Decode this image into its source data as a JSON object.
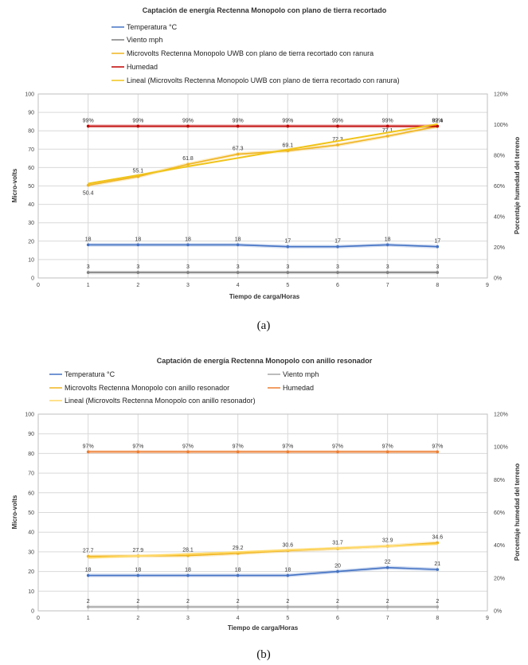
{
  "chart_data": [
    {
      "type": "line",
      "title": "Captación de energía Rectenna Monopolo  con plano de tierra recortado",
      "caption": "(a)",
      "xlabel": "Tiempo de carga/Horas",
      "ylabel": "Micro-volts",
      "y2label": "Porcentaje  humedad del terreno",
      "xlim": [
        0,
        9
      ],
      "ylim": [
        0,
        100
      ],
      "y2lim": [
        0,
        1.2
      ],
      "xticks": [
        "0",
        "1",
        "2",
        "3",
        "4",
        "5",
        "6",
        "7",
        "8",
        "9"
      ],
      "yticks": [
        "0",
        "10",
        "20",
        "30",
        "40",
        "50",
        "60",
        "70",
        "80",
        "90",
        "100"
      ],
      "y2ticks": [
        "0%",
        "20%",
        "40%",
        "60%",
        "80%",
        "100%",
        "120%"
      ],
      "x": [
        1,
        2,
        3,
        4,
        5,
        6,
        7,
        8
      ],
      "grid": true,
      "legend_position": "top-left",
      "series": [
        {
          "name": "Temperatura °C",
          "color": "#4472c4",
          "axis": "left",
          "values": [
            18,
            18,
            18,
            18,
            17,
            17,
            18,
            17
          ],
          "labels": [
            "18",
            "18",
            "18",
            "18",
            "17",
            "17",
            "18",
            "17"
          ]
        },
        {
          "name": "Viento mph",
          "color": "#7f7f7f",
          "axis": "left",
          "values": [
            3,
            3,
            3,
            3,
            3,
            3,
            3,
            3
          ],
          "labels": [
            "3",
            "3",
            "3",
            "3",
            "3",
            "3",
            "3",
            "3"
          ]
        },
        {
          "name": "Microvolts Rectenna Monopolo UWB con plano de tierra recortado con ranura",
          "color": "#f0b41e",
          "axis": "left",
          "values": [
            50.4,
            55.1,
            61.8,
            67.3,
            69.1,
            72.3,
            77.1,
            82.4
          ],
          "labels": [
            "50.4",
            "55.1",
            "61.8",
            "67.3",
            "69.1",
            "72.3",
            "77.1",
            "82.4"
          ]
        },
        {
          "name": "Humedad",
          "color": "#c00000",
          "axis": "right",
          "values": [
            0.99,
            0.99,
            0.99,
            0.99,
            0.99,
            0.99,
            0.99,
            0.99
          ],
          "labels": [
            "99%",
            "99%",
            "99%",
            "99%",
            "99%",
            "99%",
            "99%",
            "99%"
          ]
        },
        {
          "name": "Lineal (Microvolts Rectenna Monopolo UWB con plano de tierra recortado con ranura)",
          "color": "#f0c419",
          "axis": "left",
          "trendline": true,
          "values": [
            51.3,
            55.9,
            60.6,
            65.2,
            69.8,
            74.4,
            79.0,
            83.6
          ],
          "labels": []
        }
      ]
    },
    {
      "type": "line",
      "title": "Captación de energía Rectenna Monopolo con anillo resonador",
      "caption": "(b)",
      "xlabel": "Tiempo de carga/Horas",
      "ylabel": "Micro-volts",
      "y2label": "Porcentaje  humedad del terreno",
      "xlim": [
        0,
        9
      ],
      "ylim": [
        0,
        100
      ],
      "y2lim": [
        0,
        1.2
      ],
      "xticks": [
        "0",
        "1",
        "2",
        "3",
        "4",
        "5",
        "6",
        "7",
        "8",
        "9"
      ],
      "yticks": [
        "0",
        "10",
        "20",
        "30",
        "40",
        "50",
        "60",
        "70",
        "80",
        "90",
        "100"
      ],
      "y2ticks": [
        "0%",
        "20%",
        "40%",
        "60%",
        "80%",
        "100%",
        "120%"
      ],
      "x": [
        1,
        2,
        3,
        4,
        5,
        6,
        7,
        8
      ],
      "grid": true,
      "legend_position": "top-left",
      "series": [
        {
          "name": "Temperatura °C",
          "color": "#4472c4",
          "axis": "left",
          "values": [
            18,
            18,
            18,
            18,
            18,
            20,
            22,
            21
          ],
          "labels": [
            "18",
            "18",
            "18",
            "18",
            "18",
            "20",
            "22",
            "21"
          ]
        },
        {
          "name": "Viento mph",
          "color": "#a6a6a6",
          "axis": "left",
          "values": [
            2,
            2,
            2,
            2,
            2,
            2,
            2,
            2
          ],
          "labels": [
            "2",
            "2",
            "2",
            "2",
            "2",
            "2",
            "2",
            "2"
          ]
        },
        {
          "name": "Microvolts Rectenna Monopolo con anillo resonador",
          "color": "#f0b41e",
          "axis": "left",
          "values": [
            27.7,
            27.9,
            28.1,
            29.2,
            30.6,
            31.7,
            32.9,
            34.6
          ],
          "labels": [
            "27.7",
            "27.9",
            "28.1",
            "29.2",
            "30.6",
            "31.7",
            "32.9",
            "34.6"
          ]
        },
        {
          "name": "Humedad",
          "color": "#ed7d31",
          "axis": "right",
          "values": [
            0.97,
            0.97,
            0.97,
            0.97,
            0.97,
            0.97,
            0.97,
            0.97
          ],
          "labels": [
            "97%",
            "97%",
            "97%",
            "97%",
            "97%",
            "97%",
            "97%",
            "97%"
          ]
        },
        {
          "name": "Lineal (Microvolts Rectenna Monopolo con anillo resonador)",
          "color": "#ffd966",
          "axis": "left",
          "trendline": true,
          "values": [
            26.9,
            27.9,
            28.9,
            29.9,
            30.9,
            31.9,
            32.9,
            33.9
          ],
          "labels": []
        }
      ]
    }
  ]
}
